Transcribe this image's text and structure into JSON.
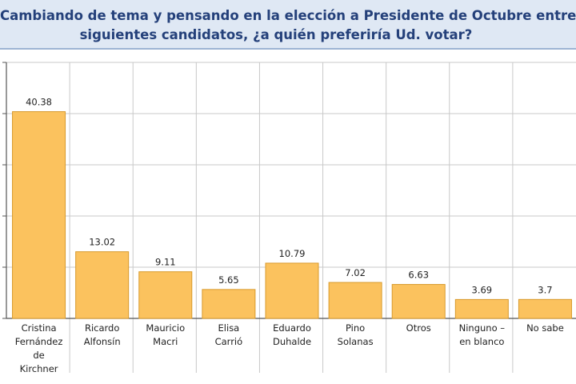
{
  "chart_data": {
    "type": "bar",
    "title_lines": [
      "Cambiando de tema y pensando en la elección a Presidente de Octubre entre los",
      "siguientes candidatos, ¿a quién preferiría Ud. votar?"
    ],
    "categories": [
      [
        "Cristina",
        "Fernández",
        "de",
        "Kirchner"
      ],
      [
        "Ricardo",
        "Alfonsín"
      ],
      [
        "Mauricio",
        "Macri"
      ],
      [
        "Elisa",
        "Carrió"
      ],
      [
        "Eduardo",
        "Duhalde"
      ],
      [
        "Pino",
        "Solanas"
      ],
      [
        "Otros"
      ],
      [
        "Ninguno –",
        "en blanco"
      ],
      [
        "No sabe"
      ]
    ],
    "values": [
      40.38,
      13.02,
      9.11,
      5.65,
      10.79,
      7.02,
      6.63,
      3.69,
      3.7
    ],
    "value_labels": [
      "40.38",
      "13.02",
      "9.11",
      "5.65",
      "10.79",
      "7.02",
      "6.63",
      "3.69",
      "3.7"
    ],
    "ylim": [
      0,
      50
    ],
    "grid": true,
    "colors": {
      "bar": "#fbc25e",
      "bar_edge": "#d89a2c",
      "axis": "#555555",
      "grid": "#c8c8c8",
      "title_bg": "#dfe8f4",
      "title_text": "#24407a"
    }
  }
}
